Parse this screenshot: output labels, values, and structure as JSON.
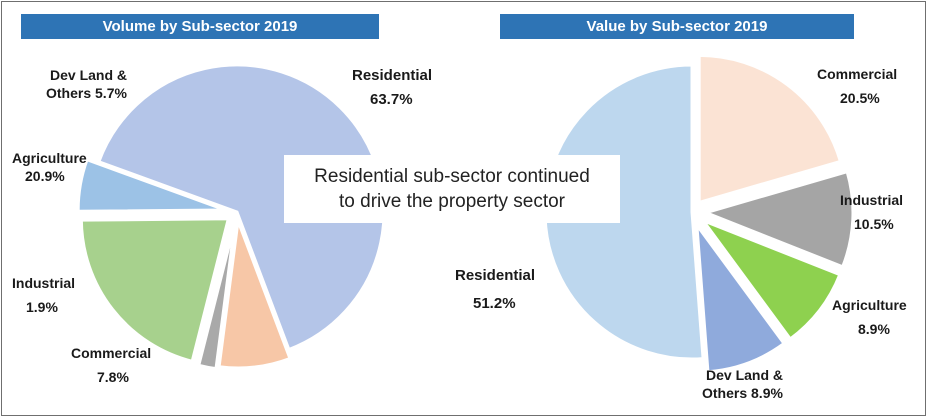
{
  "chart_data": [
    {
      "type": "pie",
      "title": "Volume by Sub-sector 2019",
      "slices": [
        {
          "name": "Residential",
          "value": 63.7,
          "value_label": "63.7%",
          "color": "#b4c5e8"
        },
        {
          "name": "Commercial",
          "value": 7.8,
          "value_label": "7.8%",
          "color": "#f7c7a7"
        },
        {
          "name": "Industrial",
          "value": 1.9,
          "value_label": "1.9%",
          "color": "#a9a9a9"
        },
        {
          "name": "Agriculture",
          "value": 20.9,
          "value_label": "20.9%",
          "color": "#a7d18d"
        },
        {
          "name": "Dev Land & Others",
          "value": 5.7,
          "value_label": "5.7%",
          "color": "#9cc2e6"
        }
      ]
    },
    {
      "type": "pie",
      "title": "Value by Sub-sector 2019",
      "slices": [
        {
          "name": "Commercial",
          "value": 20.5,
          "value_label": "20.5%",
          "color": "#fbe3d4"
        },
        {
          "name": "Industrial",
          "value": 10.5,
          "value_label": "10.5%",
          "color": "#a5a5a5"
        },
        {
          "name": "Agriculture",
          "value": 8.9,
          "value_label": "8.9%",
          "color": "#8ed14f"
        },
        {
          "name": "Dev Land & Others",
          "value": 8.9,
          "value_label": "8.9%",
          "color": "#8faadc"
        },
        {
          "name": "Residential",
          "value": 51.2,
          "value_label": "51.2%",
          "color": "#bdd7ee"
        }
      ]
    }
  ],
  "callout": {
    "line1": "Residential sub-sector continued",
    "line2": "to drive the property sector"
  },
  "labels": {
    "left": {
      "residential": {
        "name": "Residential",
        "value": "63.7%"
      },
      "dev_land": {
        "name": "Dev Land &",
        "name2": "Others 5.7%"
      },
      "agriculture": {
        "name": "Agriculture",
        "value": "20.9%"
      },
      "industrial": {
        "name": "Industrial",
        "value": "1.9%"
      },
      "commercial": {
        "name": "Commercial",
        "value": "7.8%"
      }
    },
    "right": {
      "commercial": {
        "name": "Commercial",
        "value": "20.5%"
      },
      "industrial": {
        "name": "Industrial",
        "value": "10.5%"
      },
      "agriculture": {
        "name": "Agriculture",
        "value": "8.9%"
      },
      "dev_land": {
        "name": "Dev Land &",
        "name2": "Others 8.9%"
      },
      "residential": {
        "name": "Residential",
        "value": "51.2%"
      }
    }
  }
}
